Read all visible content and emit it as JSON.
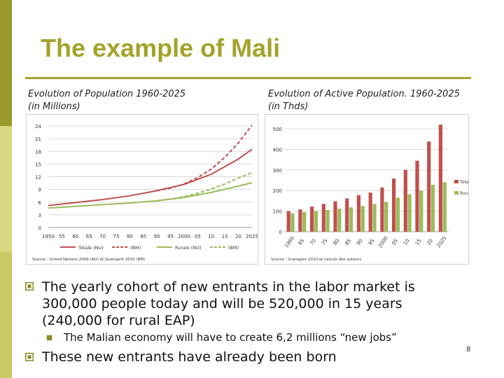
{
  "slide": {
    "title": "The example of Mali",
    "page_number": "8",
    "accent_color": "#a3a32a"
  },
  "captions": {
    "left_line1": "Evolution of Population 1960-2025",
    "left_line2": "(in Millions)",
    "right_line1": "Evolution of Active Population. 1960-2025",
    "right_line2": "(in Thds)"
  },
  "bullets": {
    "b1_line1": "The yearly cohort of new entrants in the labor market is",
    "b1_line2": "300,000 people today and will be 520,000 in 15 years",
    "b1_line3": "(240,000 for rural EAP)",
    "sub1": "The Malian economy will have to create 6,2 millions “new jobs”",
    "b2": "These new entrants have already been born"
  },
  "chart_data": [
    {
      "type": "line",
      "ylim": [
        0,
        24
      ],
      "yticks": [
        "0",
        "3",
        "6",
        "9",
        "12",
        "15",
        "18",
        "21",
        "24"
      ],
      "x": [
        1950,
        1955,
        1960,
        1965,
        1970,
        1975,
        1980,
        1985,
        1990,
        1995,
        2000,
        2005,
        2010,
        2015,
        2020,
        2025
      ],
      "xticks": [
        "1950",
        "55",
        "60",
        "65",
        "70",
        "75",
        "80",
        "85",
        "90",
        "95",
        "2000",
        "05",
        "10",
        "15",
        "20",
        "2025"
      ],
      "series": [
        {
          "name": "Totale (NU)",
          "color": "#c0504d",
          "dashed": false,
          "x": [
            1950,
            1960,
            1970,
            1980,
            1990,
            2000,
            2010,
            2020,
            2025
          ],
          "values": [
            5.2,
            5.9,
            6.6,
            7.5,
            8.7,
            10.2,
            12.6,
            16.2,
            18.5
          ]
        },
        {
          "name": "(BM)",
          "color": "#c0504d",
          "dashed": true,
          "x": [
            1990,
            1995,
            2000,
            2005,
            2010,
            2015,
            2020,
            2025
          ],
          "values": [
            8.7,
            9.3,
            10.3,
            11.8,
            13.8,
            16.6,
            20.0,
            24.2
          ]
        },
        {
          "name": "Rurale (NU)",
          "color": "#9bbb59",
          "dashed": false,
          "x": [
            1950,
            1960,
            1970,
            1980,
            1990,
            2000,
            2010,
            2020,
            2025
          ],
          "values": [
            4.6,
            5.0,
            5.4,
            5.8,
            6.3,
            7.1,
            8.3,
            9.8,
            10.6
          ]
        },
        {
          "name": "(BM)",
          "color": "#9bbb59",
          "dashed": true,
          "x": [
            1990,
            1995,
            2000,
            2005,
            2010,
            2015,
            2020,
            2025
          ],
          "values": [
            6.3,
            6.7,
            7.3,
            8.1,
            9.1,
            10.3,
            11.7,
            13.0
          ]
        }
      ],
      "source": "Source : United Nations 2009 (NU) et Guengant 2010 (BM)"
    },
    {
      "type": "bar",
      "ylim": [
        0,
        500
      ],
      "yticks": [
        "0",
        "100",
        "200",
        "300",
        "400",
        "500"
      ],
      "categories": [
        "1960",
        "65",
        "70",
        "75",
        "80",
        "85",
        "90",
        "95",
        "2000",
        "05",
        "10",
        "15",
        "20",
        "2025"
      ],
      "series": [
        {
          "name": "Totale",
          "color": "#c0504d",
          "values": [
            100,
            108,
            122,
            135,
            148,
            162,
            178,
            190,
            215,
            258,
            300,
            345,
            438,
            520
          ]
        },
        {
          "name": "Rurale",
          "color": "#9bbb59",
          "values": [
            90,
            95,
            100,
            105,
            112,
            118,
            125,
            135,
            145,
            165,
            182,
            200,
            228,
            240
          ]
        }
      ],
      "source": "Source : Guengant 2010 et calculs des auteurs"
    }
  ]
}
